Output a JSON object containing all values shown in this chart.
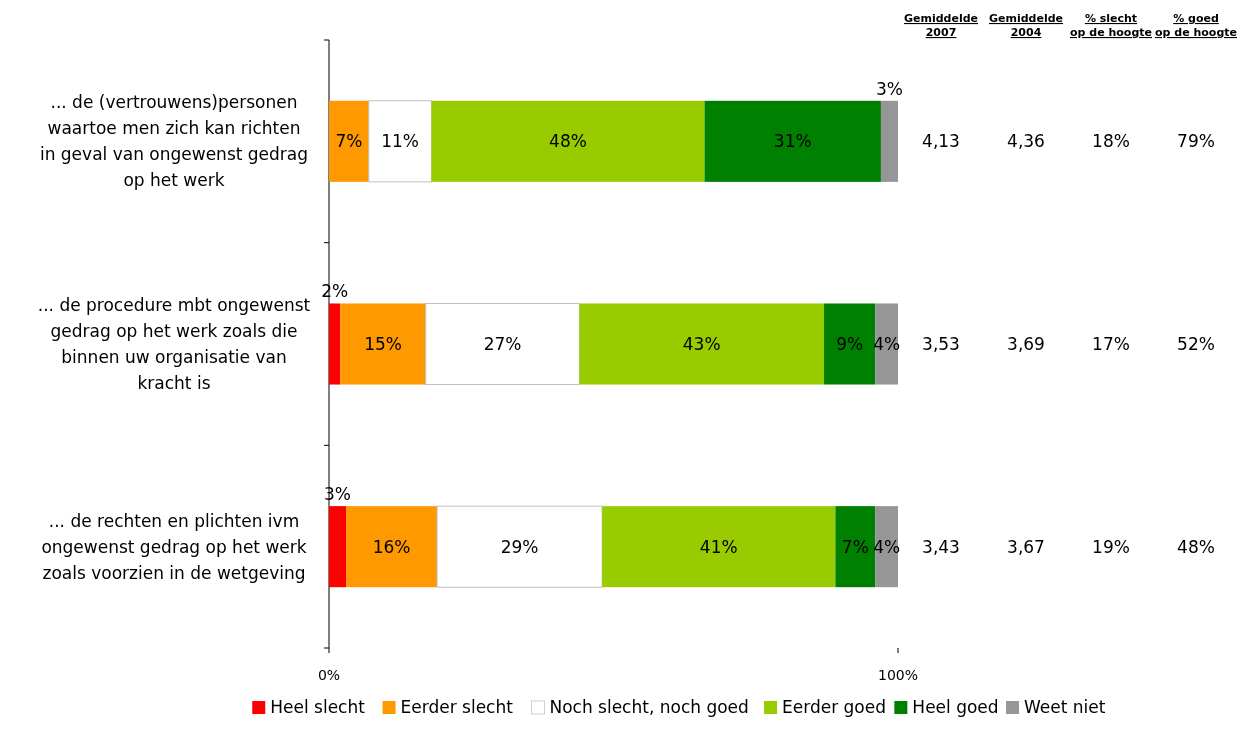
{
  "chart_data": {
    "type": "bar",
    "orientation": "horizontal",
    "stacked": true,
    "categories": [
      "... de (vertrouwens)personen waartoe men zich kan richten in geval van ongewenst gedrag op het werk",
      "... de procedure mbt ongewenst gedrag op het werk zoals die binnen uw organisatie van kracht is",
      "... de rechten en plichten ivm ongewenst gedrag op het werk zoals voorzien in de wetgeving"
    ],
    "series": [
      {
        "name": "Heel slecht",
        "color": "#ff0000",
        "values": [
          0,
          2,
          3
        ],
        "value_labels": [
          null,
          "2%",
          "3%"
        ]
      },
      {
        "name": "Eerder slecht",
        "color": "#ff9900",
        "values": [
          7,
          15,
          16
        ],
        "value_labels": [
          "7%",
          "15%",
          "16%"
        ]
      },
      {
        "name": "Noch slecht, noch goed",
        "color": "#ffffff",
        "values": [
          11,
          27,
          29
        ],
        "value_labels": [
          "11%",
          "27%",
          "29%"
        ]
      },
      {
        "name": "Eerder goed",
        "color": "#99cc00",
        "values": [
          48,
          43,
          41
        ],
        "value_labels": [
          "48%",
          "43%",
          "41%"
        ]
      },
      {
        "name": "Heel goed",
        "color": "#008000",
        "values": [
          31,
          9,
          7
        ],
        "value_labels": [
          "31%",
          "9%",
          "7%"
        ]
      },
      {
        "name": "Weet niet",
        "color": "#969696",
        "values": [
          3,
          4,
          4
        ],
        "value_labels": [
          "3%",
          "4%",
          "4%"
        ]
      }
    ],
    "xlim": [
      0,
      100
    ],
    "xticks": [
      {
        "value": 0,
        "label": "0%"
      },
      {
        "value": 100,
        "label": "100%"
      }
    ],
    "legend": "bottom",
    "annotations": [
      "Gemiddelde\n2007",
      "Gemiddelde\n2004",
      "% slecht\nop de hoogte",
      "% goed\nop de hoogte",
      "4,13",
      "4,36",
      "18%",
      "79%",
      "3,53",
      "3,69",
      "17%",
      "52%",
      "3,43",
      "3,67",
      "19%",
      "48%"
    ]
  }
}
